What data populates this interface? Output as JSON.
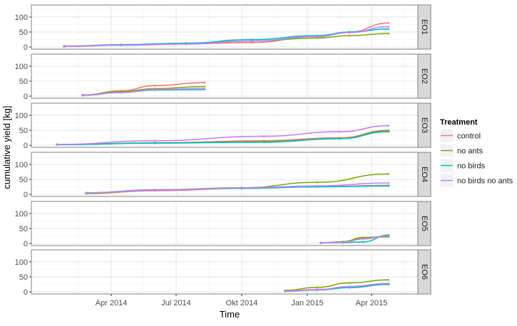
{
  "chart_data": {
    "type": "line",
    "ylabel": "cumulative yield [kg]",
    "xlabel": "Time",
    "x_ticks": [
      "Apr 2014",
      "Jul 2014",
      "Okt 2014",
      "Jan 2015",
      "Apr 2015"
    ],
    "y_ticks": [
      "0",
      "50",
      "100"
    ],
    "ylim": [
      0,
      140
    ],
    "grid": true,
    "legend": {
      "title": "Treatment",
      "placement": "right",
      "entries": [
        {
          "name": "control",
          "color": "#F8766D"
        },
        {
          "name": "no ants",
          "color": "#7CAE00"
        },
        {
          "name": "no birds",
          "color": "#00BFC4"
        },
        {
          "name": "no birds no ants",
          "color": "#C77CFF"
        }
      ]
    },
    "facets": [
      {
        "label": "EO1",
        "series": [
          {
            "name": "control",
            "x": [
              "2014-01-25",
              "2014-04-15",
              "2014-07-15",
              "2014-10-15",
              "2015-01-15",
              "2015-03-01",
              "2015-04-25"
            ],
            "y": [
              2,
              6,
              10,
              15,
              35,
              50,
              80
            ]
          },
          {
            "name": "no ants",
            "x": [
              "2014-01-25",
              "2014-04-15",
              "2014-07-15",
              "2014-10-15",
              "2015-01-15",
              "2015-03-01",
              "2015-04-25"
            ],
            "y": [
              3,
              7,
              12,
              20,
              30,
              38,
              45
            ]
          },
          {
            "name": "no birds",
            "x": [
              "2014-01-25",
              "2014-04-15",
              "2014-07-15",
              "2014-10-15",
              "2015-01-15",
              "2015-03-01",
              "2015-04-25"
            ],
            "y": [
              2,
              8,
              13,
              25,
              38,
              50,
              60
            ]
          },
          {
            "name": "no birds no ants",
            "x": [
              "2014-01-25",
              "2014-04-15",
              "2014-07-15",
              "2014-10-15",
              "2015-01-15",
              "2015-03-01",
              "2015-04-25"
            ],
            "y": [
              2,
              6,
              10,
              20,
              35,
              48,
              68
            ]
          }
        ]
      },
      {
        "label": "EO2",
        "series": [
          {
            "name": "control",
            "x": [
              "2014-02-20",
              "2014-04-15",
              "2014-06-01",
              "2014-08-10"
            ],
            "y": [
              3,
              18,
              35,
              45
            ]
          },
          {
            "name": "no ants",
            "x": [
              "2014-02-20",
              "2014-04-15",
              "2014-06-01",
              "2014-08-10"
            ],
            "y": [
              4,
              15,
              25,
              32
            ]
          },
          {
            "name": "no birds",
            "x": [
              "2014-02-20",
              "2014-04-15",
              "2014-06-01",
              "2014-08-10"
            ],
            "y": [
              3,
              12,
              20,
              22
            ]
          },
          {
            "name": "no birds no ants",
            "x": [
              "2014-02-20",
              "2014-04-15",
              "2014-06-01",
              "2014-08-10"
            ],
            "y": [
              3,
              12,
              22,
              25
            ]
          }
        ]
      },
      {
        "label": "EO3",
        "series": [
          {
            "name": "control",
            "x": [
              "2014-01-15",
              "2014-06-01",
              "2014-11-01",
              "2015-02-15",
              "2015-04-25"
            ],
            "y": [
              2,
              8,
              15,
              25,
              50
            ]
          },
          {
            "name": "no ants",
            "x": [
              "2014-01-15",
              "2014-06-01",
              "2014-11-01",
              "2015-02-15",
              "2015-04-25"
            ],
            "y": [
              2,
              8,
              12,
              22,
              48
            ]
          },
          {
            "name": "no birds",
            "x": [
              "2014-01-15",
              "2014-06-01",
              "2014-11-01",
              "2015-02-15",
              "2015-04-25"
            ],
            "y": [
              2,
              7,
              10,
              22,
              45
            ]
          },
          {
            "name": "no birds no ants",
            "x": [
              "2014-01-15",
              "2014-06-01",
              "2014-11-01",
              "2015-02-15",
              "2015-04-25"
            ],
            "y": [
              3,
              15,
              30,
              45,
              65
            ]
          }
        ]
      },
      {
        "label": "EO4",
        "series": [
          {
            "name": "control",
            "x": [
              "2014-02-25",
              "2014-06-01",
              "2014-10-01",
              "2015-01-15",
              "2015-04-25"
            ],
            "y": [
              3,
              12,
              20,
              25,
              30
            ]
          },
          {
            "name": "no ants",
            "x": [
              "2014-02-25",
              "2014-06-01",
              "2014-10-01",
              "2015-01-15",
              "2015-04-25"
            ],
            "y": [
              3,
              15,
              22,
              40,
              68
            ]
          },
          {
            "name": "no birds",
            "x": [
              "2014-02-25",
              "2014-06-01",
              "2014-10-01",
              "2015-01-15",
              "2015-04-25"
            ],
            "y": [
              5,
              15,
              20,
              25,
              28
            ]
          },
          {
            "name": "no birds no ants",
            "x": [
              "2014-02-25",
              "2014-06-01",
              "2014-10-01",
              "2015-01-15",
              "2015-04-25"
            ],
            "y": [
              5,
              14,
              22,
              28,
              38
            ]
          }
        ]
      },
      {
        "label": "EO5",
        "series": [
          {
            "name": "control",
            "x": [
              "2015-01-20",
              "2015-02-20",
              "2015-03-20",
              "2015-04-25"
            ],
            "y": [
              2,
              5,
              18,
              25
            ]
          },
          {
            "name": "no ants",
            "x": [
              "2015-01-20",
              "2015-02-20",
              "2015-03-20",
              "2015-04-25"
            ],
            "y": [
              2,
              6,
              20,
              22
            ]
          },
          {
            "name": "no birds",
            "x": [
              "2015-01-20",
              "2015-02-20",
              "2015-03-20",
              "2015-04-25"
            ],
            "y": [
              2,
              3,
              5,
              28
            ]
          },
          {
            "name": "no birds no ants",
            "x": [
              "2015-01-20",
              "2015-02-20",
              "2015-03-20",
              "2015-04-25"
            ],
            "y": [
              2,
              4,
              15,
              25
            ]
          }
        ]
      },
      {
        "label": "EO6",
        "series": [
          {
            "name": "control",
            "x": [
              "2014-12-01",
              "2015-01-15",
              "2015-03-01",
              "2015-04-25"
            ],
            "y": [
              3,
              8,
              15,
              25
            ]
          },
          {
            "name": "no ants",
            "x": [
              "2014-12-01",
              "2015-01-15",
              "2015-03-01",
              "2015-04-25"
            ],
            "y": [
              5,
              15,
              30,
              40
            ]
          },
          {
            "name": "no birds",
            "x": [
              "2014-12-01",
              "2015-01-15",
              "2015-03-01",
              "2015-04-25"
            ],
            "y": [
              2,
              6,
              14,
              25
            ]
          },
          {
            "name": "no birds no ants",
            "x": [
              "2014-12-01",
              "2015-01-15",
              "2015-03-01",
              "2015-04-25"
            ],
            "y": [
              2,
              7,
              18,
              28
            ]
          }
        ]
      }
    ]
  }
}
